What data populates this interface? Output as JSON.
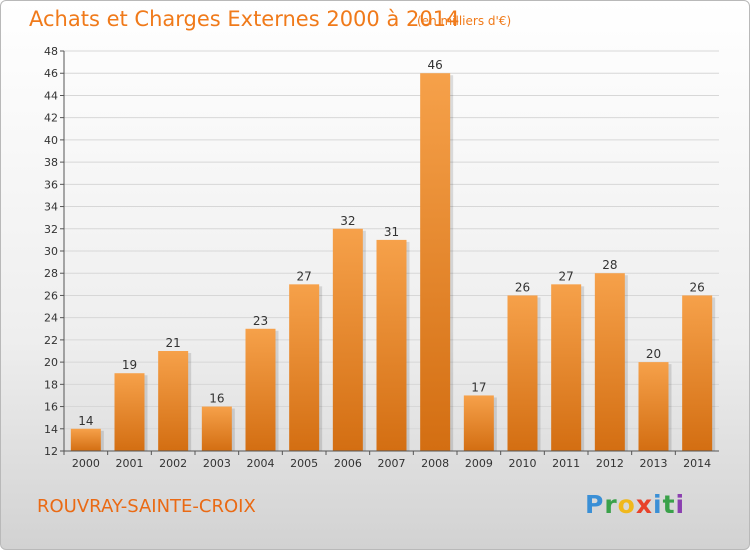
{
  "header": {
    "title": "Achats et Charges Externes 2000 à 2014",
    "subtitle": "(en milliers d'€)"
  },
  "footer": {
    "commune": "ROUVRAY-SAINTE-CROIX",
    "logo_letters": [
      "P",
      "r",
      "o",
      "x",
      "i",
      "t",
      "i"
    ],
    "logo_colors": [
      "#3a8fd6",
      "#3aa14a",
      "#f0b81c",
      "#e8422a",
      "#3a8fd6",
      "#3aa14a",
      "#8b3fb0"
    ]
  },
  "colors": {
    "bar_light": "#f6a14a",
    "bar_dark": "#d36e12",
    "grid": "#d7d7d7",
    "axis": "#555555",
    "text": "#333333"
  },
  "chart_data": {
    "type": "bar",
    "categories": [
      "2000",
      "2001",
      "2002",
      "2003",
      "2004",
      "2005",
      "2006",
      "2007",
      "2008",
      "2009",
      "2010",
      "2011",
      "2012",
      "2013",
      "2014"
    ],
    "values": [
      14,
      19,
      21,
      16,
      23,
      27,
      32,
      31,
      46,
      17,
      26,
      27,
      28,
      20,
      26
    ],
    "data_labels": [
      "14",
      "19",
      "21",
      "16",
      "23",
      "27",
      "32",
      "31",
      "46",
      "17",
      "26",
      "27",
      "28",
      "20",
      "26"
    ],
    "yticks": [
      "12",
      "14",
      "16",
      "18",
      "20",
      "22",
      "24",
      "26",
      "28",
      "30",
      "32",
      "34",
      "36",
      "38",
      "40",
      "42",
      "44",
      "46",
      "48"
    ],
    "ylim": [
      12,
      48
    ],
    "grid": true,
    "legend": "none"
  }
}
